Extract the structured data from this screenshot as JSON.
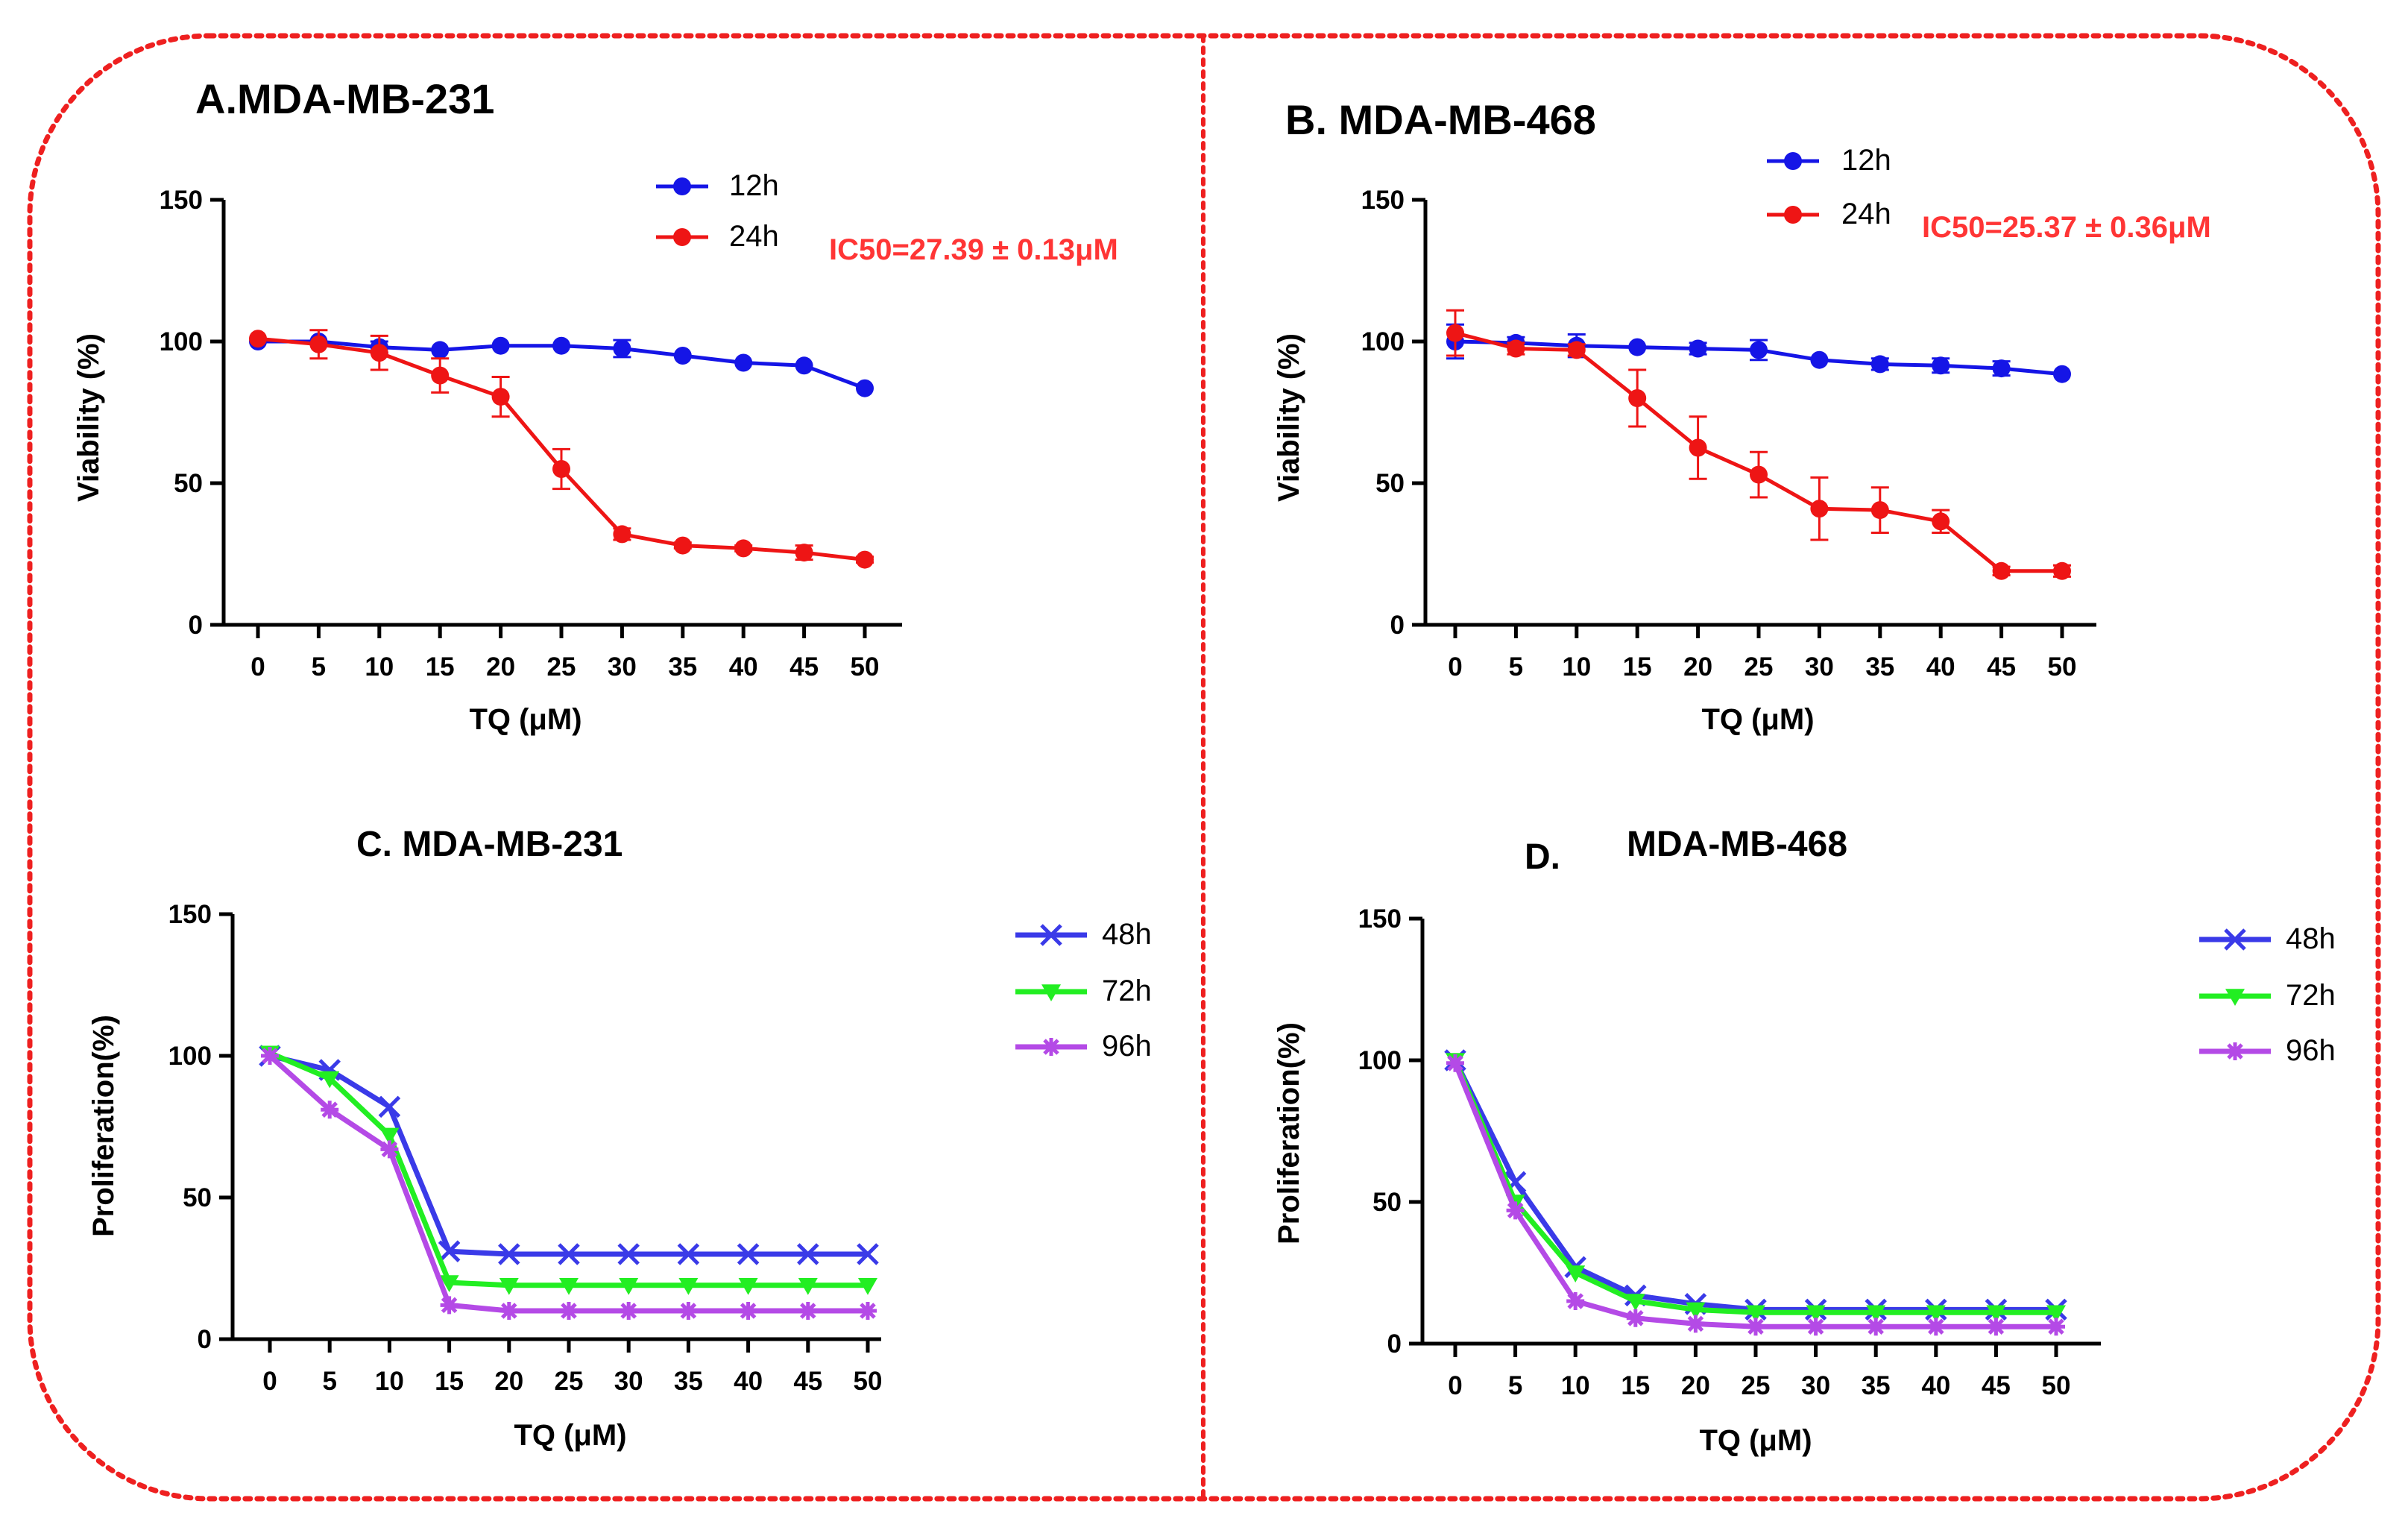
{
  "colors": {
    "border": "#ee2020",
    "blue": "#1515e6",
    "red": "#ee1515",
    "purple_blue": "#3a3ae8",
    "green": "#22ee22",
    "purple": "#b44ae6",
    "annotation": "#ff3535"
  },
  "chart_data": [
    {
      "id": "A",
      "type": "line",
      "title": "A.MDA-MB-231",
      "xlabel": "TQ (μM)",
      "ylabel": "Viability (%)",
      "x": [
        0,
        5,
        10,
        15,
        20,
        25,
        30,
        35,
        40,
        45,
        50
      ],
      "xticks": [
        "0",
        "5",
        "10",
        "15",
        "20",
        "25",
        "30",
        "35",
        "40",
        "45",
        "50"
      ],
      "yticks": [
        "0",
        "50",
        "100",
        "150"
      ],
      "ylim": [
        0,
        150
      ],
      "legend_position": "top-right",
      "annotation": "IC50=27.39 ± 0.13μM",
      "series": [
        {
          "name": "12h",
          "color": "blue",
          "marker": "circle",
          "values": [
            100,
            100,
            98,
            97,
            98.5,
            98.5,
            97.5,
            95,
            92.5,
            91.5,
            83.5
          ],
          "errors": [
            0,
            0,
            2,
            0,
            0,
            0,
            3,
            0,
            0,
            0,
            0
          ]
        },
        {
          "name": "24h",
          "color": "red",
          "marker": "circle",
          "values": [
            101,
            99,
            96,
            88,
            80.5,
            55,
            32,
            28,
            27,
            25.5,
            23
          ],
          "errors": [
            0,
            5,
            6,
            6,
            7,
            7,
            2,
            1,
            1,
            2.5,
            1
          ]
        }
      ]
    },
    {
      "id": "B",
      "type": "line",
      "title": "B. MDA-MB-468",
      "xlabel": "TQ (μM)",
      "ylabel": "Viability (%)",
      "x": [
        0,
        5,
        10,
        15,
        20,
        25,
        30,
        35,
        40,
        45,
        50
      ],
      "xticks": [
        "0",
        "5",
        "10",
        "15",
        "20",
        "25",
        "30",
        "35",
        "40",
        "45",
        "50"
      ],
      "yticks": [
        "0",
        "50",
        "100",
        "150"
      ],
      "ylim": [
        0,
        150
      ],
      "legend_position": "top-right",
      "annotation": "IC50=25.37 ± 0.36μM",
      "series": [
        {
          "name": "12h",
          "color": "blue",
          "marker": "circle",
          "values": [
            100,
            99.5,
            98.5,
            98,
            97.5,
            97,
            93.5,
            92,
            91.5,
            90.5,
            88.5
          ],
          "errors": [
            6,
            2,
            4,
            0,
            2,
            3.5,
            0,
            2,
            2.5,
            2.5,
            0
          ]
        },
        {
          "name": "24h",
          "color": "red",
          "marker": "circle",
          "values": [
            103,
            97.5,
            97,
            80,
            62.5,
            53,
            41,
            40.5,
            36.5,
            19,
            19
          ],
          "errors": [
            8,
            2,
            2,
            10,
            11,
            8,
            11,
            8,
            4,
            1.5,
            2
          ]
        }
      ]
    },
    {
      "id": "C",
      "type": "line",
      "title": "C.   MDA-MB-231",
      "xlabel": "TQ (μM)",
      "ylabel": "Proliferation(%)",
      "x": [
        0,
        5,
        10,
        15,
        20,
        25,
        30,
        35,
        40,
        45,
        50
      ],
      "xticks": [
        "0",
        "5",
        "10",
        "15",
        "20",
        "25",
        "30",
        "35",
        "40",
        "45",
        "50"
      ],
      "yticks": [
        "0",
        "50",
        "100",
        "150"
      ],
      "ylim": [
        0,
        150
      ],
      "legend_position": "right",
      "series": [
        {
          "name": "48h",
          "color": "purple_blue",
          "marker": "x",
          "values": [
            100,
            95,
            82,
            31,
            30,
            30,
            30,
            30,
            30,
            30,
            30
          ]
        },
        {
          "name": "72h",
          "color": "green",
          "marker": "triangle-down",
          "values": [
            101,
            92,
            72,
            20,
            19,
            19,
            19,
            19,
            19,
            19,
            19
          ]
        },
        {
          "name": "96h",
          "color": "purple",
          "marker": "star",
          "values": [
            100,
            81,
            67,
            12,
            10,
            10,
            10,
            10,
            10,
            10,
            10
          ]
        }
      ]
    },
    {
      "id": "D",
      "type": "line",
      "title": "D.",
      "subtitle": "MDA-MB-468",
      "xlabel": "TQ (μM)",
      "ylabel": "Proliferation(%)",
      "x": [
        0,
        5,
        10,
        15,
        20,
        25,
        30,
        35,
        40,
        45,
        50
      ],
      "xticks": [
        "0",
        "5",
        "10",
        "15",
        "20",
        "25",
        "30",
        "35",
        "40",
        "45",
        "50"
      ],
      "yticks": [
        "0",
        "50",
        "100",
        "150"
      ],
      "ylim": [
        0,
        150
      ],
      "legend_position": "right",
      "series": [
        {
          "name": "48h",
          "color": "purple_blue",
          "marker": "x",
          "values": [
            100,
            57,
            27,
            17,
            14,
            12,
            12,
            12,
            12,
            12,
            12
          ]
        },
        {
          "name": "72h",
          "color": "green",
          "marker": "triangle-down",
          "values": [
            100,
            50,
            25,
            15,
            12,
            11,
            11,
            11,
            11,
            11,
            11
          ]
        },
        {
          "name": "96h",
          "color": "purple",
          "marker": "star",
          "values": [
            99,
            47,
            15,
            9,
            7,
            6,
            6,
            6,
            6,
            6,
            6
          ]
        }
      ]
    }
  ]
}
